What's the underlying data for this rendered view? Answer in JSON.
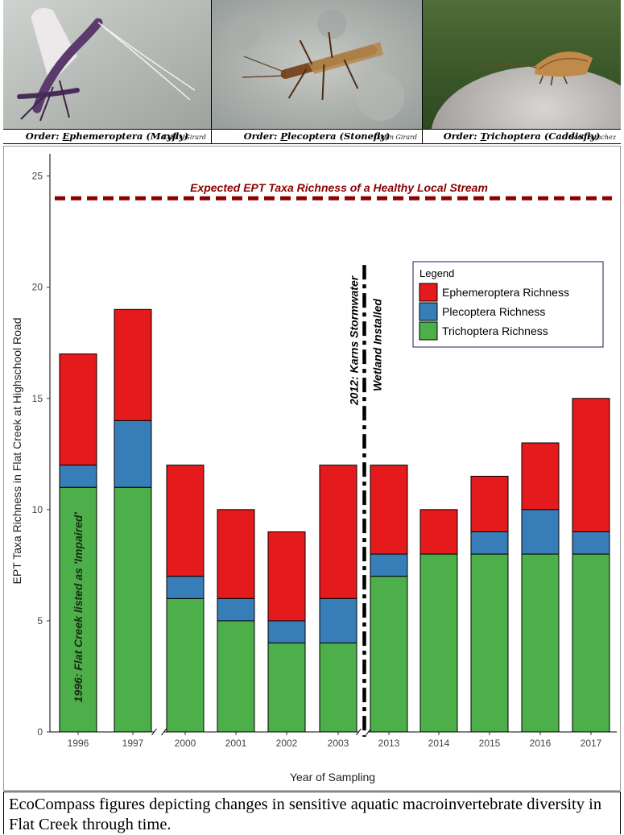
{
  "photos": [
    {
      "order_prefix": "Order: ",
      "order_initial": "E",
      "order_rest": "phemeroptera (Mayfly)",
      "credit": "Carlin Girard",
      "subject": "mayfly"
    },
    {
      "order_prefix": "Order: ",
      "order_initial": "P",
      "order_rest": "lecoptera (Stonefly)",
      "credit": "Carlin Girard",
      "subject": "stonefly"
    },
    {
      "order_prefix": "Order: ",
      "order_initial": "T",
      "order_rest": "richoptera (Caddisfly)",
      "credit": "Scott Sanchez",
      "subject": "caddisfly"
    }
  ],
  "chart_data": {
    "type": "bar",
    "stacked": true,
    "xlabel": "Year of Sampling",
    "ylabel": "EPT Taxa Richness in Flat Creek at Highschool Road",
    "ylim": [
      0,
      26
    ],
    "yticks": [
      0,
      5,
      10,
      15,
      20,
      25
    ],
    "categories": [
      "1996",
      "1997",
      "2000",
      "2001",
      "2002",
      "2003",
      "2013",
      "2014",
      "2015",
      "2016",
      "2017"
    ],
    "axis_breaks_after": [
      "1997",
      "2003"
    ],
    "series": [
      {
        "name": "Trichoptera Richness",
        "color": "#4daf4a",
        "values": [
          11,
          11,
          6,
          5,
          4,
          4,
          7,
          8,
          8,
          8,
          8
        ]
      },
      {
        "name": "Plecoptera Richness",
        "color": "#377eb8",
        "values": [
          1,
          3,
          1,
          1,
          1,
          2,
          1,
          0,
          1,
          2,
          1
        ]
      },
      {
        "name": "Ephemeroptera Richness",
        "color": "#e41a1c",
        "values": [
          5,
          5,
          5,
          4,
          4,
          6,
          4,
          2,
          2.5,
          3,
          6
        ]
      }
    ],
    "legend": {
      "title": "Legend",
      "position": "top-right",
      "order": [
        "Ephemeroptera Richness",
        "Plecoptera Richness",
        "Trichoptera Richness"
      ]
    },
    "reference_line": {
      "y": 24,
      "label": "Expected EPT Taxa Richness of a Healthy Local Stream",
      "color": "#8b0000",
      "style": "dashed"
    },
    "annotations": [
      {
        "text": "1996: Flat Creek listed as 'Impaired'",
        "category": "1996",
        "orientation": "vertical"
      },
      {
        "text_line1": "2012: Karns Stormwater",
        "text_line2": "Wetland Installed",
        "between": [
          "2003",
          "2013"
        ],
        "orientation": "vertical",
        "line_style": "dash-dot"
      }
    ],
    "grid": false
  },
  "caption": "EcoCompass figures depicting changes in sensitive aquatic macroinvertebrate diversity in Flat Creek through time."
}
